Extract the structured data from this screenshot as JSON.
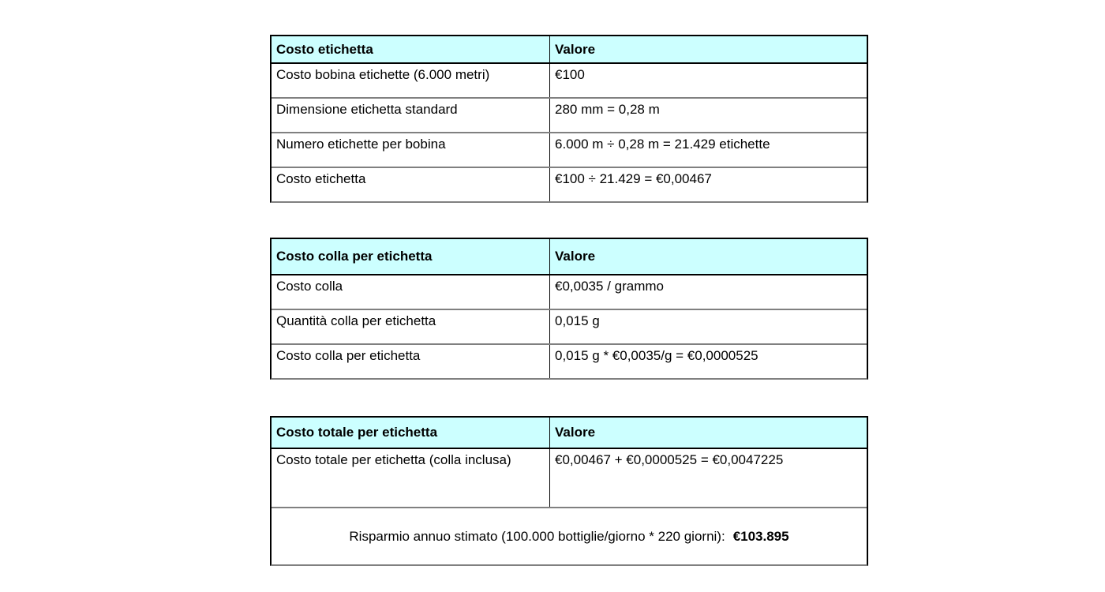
{
  "page": {
    "background": "#ffffff"
  },
  "colors": {
    "header_bg": "#ccffff",
    "border_vertical": "#000000",
    "border_horizontal": "#808080",
    "text": "#000000"
  },
  "tables": [
    {
      "id": "costo-etichetta",
      "header": {
        "label": "Costo etichetta",
        "value": "Valore"
      },
      "rows": [
        {
          "label": "Costo bobina etichette (6.000 metri)",
          "value": "€100"
        },
        {
          "label": "Dimensione etichetta standard",
          "value": "280 mm = 0,28 m"
        },
        {
          "label": "Numero etichette per bobina",
          "value": "6.000 m ÷ 0,28 m = 21.429 etichette"
        },
        {
          "label": "Costo etichetta",
          "value": "€100 ÷ 21.429 = €0,00467"
        }
      ]
    },
    {
      "id": "costo-colla-per-etichetta",
      "header": {
        "label": "Costo colla per etichetta",
        "value": "Valore"
      },
      "rows": [
        {
          "label": "Costo colla",
          "value": "€0,0035 / grammo"
        },
        {
          "label": "Quantità colla per etichetta",
          "value": "0,015 g"
        },
        {
          "label": "Costo colla per etichetta",
          "value": "0,015 g * €0,0035/g = €0,0000525"
        }
      ]
    },
    {
      "id": "costo-totale-per-etichetta",
      "header": {
        "label": "Costo totale per etichetta",
        "value": "Valore"
      },
      "rows": [
        {
          "label": "Costo totale per etichetta (colla inclusa)",
          "value": "€0,00467 + €0,0000525 = €0,0047225"
        }
      ],
      "footer": {
        "text": "Risparmio annuo stimato (100.000 bottiglie/giorno * 220 giorni):",
        "amount": "€103.895"
      }
    }
  ]
}
